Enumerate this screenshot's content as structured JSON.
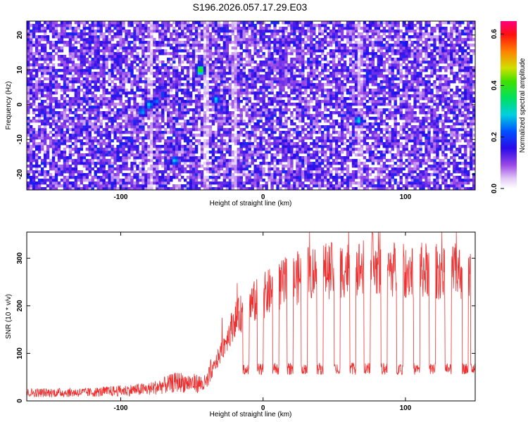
{
  "title": "S196.2026.057.17.29.E03",
  "chart_data": [
    {
      "type": "heatmap",
      "xlabel": "Height of straight line (km)",
      "ylabel": "Frequency (Hz)",
      "xlim": [
        -166,
        149
      ],
      "ylim": [
        -24.5,
        24
      ],
      "xticks": [
        -100,
        0,
        100
      ],
      "yticks": [
        -20,
        -10,
        0,
        10,
        20
      ],
      "colorbar": {
        "label": "Normalized spectral amplitude",
        "range": [
          0.0,
          0.65
        ],
        "ticks": [
          "0.0",
          "0.2",
          "0.4",
          "0.6"
        ],
        "tick_values": [
          0.0,
          0.2,
          0.4,
          0.6
        ],
        "colormap": "rainbow"
      },
      "hotspots": [
        {
          "x": -85,
          "y": -2,
          "value": 0.28
        },
        {
          "x": -80,
          "y": 0,
          "value": 0.3
        },
        {
          "x": -75,
          "y": 1,
          "value": 0.25
        },
        {
          "x": -70,
          "y": 3,
          "value": 0.22
        },
        {
          "x": -90,
          "y": -5,
          "value": 0.2
        },
        {
          "x": -62,
          "y": -16,
          "value": 0.3
        },
        {
          "x": -44,
          "y": 10,
          "value": 0.45
        },
        {
          "x": -33,
          "y": 1.5,
          "value": 0.3
        },
        {
          "x": -17,
          "y": 7.5,
          "value": 0.18
        },
        {
          "x": -16,
          "y": -18,
          "value": 0.15
        },
        {
          "x": 67,
          "y": -4.5,
          "value": 0.32
        }
      ],
      "vertical_gaps_x": [
        -79,
        -40,
        -20,
        68
      ]
    },
    {
      "type": "line",
      "xlabel": "Height of straight line (km)",
      "ylabel": "SNR (10 * v/v)",
      "xlim": [
        -166,
        149
      ],
      "ylim": [
        0,
        355
      ],
      "xticks": [
        -100,
        0,
        100
      ],
      "yticks": [
        0,
        100,
        200,
        300
      ],
      "color": "#ee3030",
      "profile": [
        {
          "x": -166,
          "y": 17
        },
        {
          "x": -120,
          "y": 18
        },
        {
          "x": -80,
          "y": 25
        },
        {
          "x": -60,
          "y": 40
        },
        {
          "x": -40,
          "y": 35
        },
        {
          "x": -30,
          "y": 100
        },
        {
          "x": -20,
          "y": 170
        },
        {
          "x": -10,
          "y": 200
        },
        {
          "x": 0,
          "y": 220
        },
        {
          "x": 10,
          "y": 240
        },
        {
          "x": 20,
          "y": 250
        },
        {
          "x": 30,
          "y": 270
        },
        {
          "x": 50,
          "y": 275
        },
        {
          "x": 70,
          "y": 280
        },
        {
          "x": 100,
          "y": 275
        },
        {
          "x": 149,
          "y": 270
        }
      ],
      "dips_x": [
        -12,
        -2,
        9,
        19,
        29,
        40,
        52,
        63,
        73,
        85,
        96,
        108,
        119,
        130,
        142,
        148
      ],
      "dip_floor": 55,
      "peak": {
        "x": 77,
        "y": 352
      }
    }
  ]
}
